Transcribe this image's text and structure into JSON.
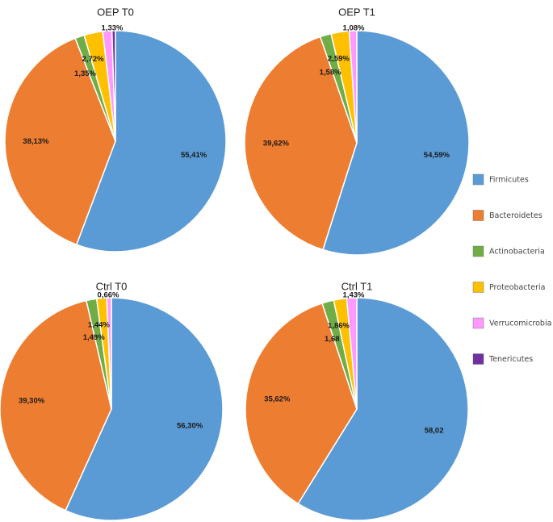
{
  "chart_data": [
    {
      "type": "pie",
      "title": "OEP T0",
      "slices": [
        {
          "category": "Firmicutes",
          "value": 55.41,
          "label": "55,41%"
        },
        {
          "category": "Bacteroidetes",
          "value": 38.13,
          "label": "38,13%"
        },
        {
          "category": "Actinobacteria",
          "value": 1.35,
          "label": "1,35%"
        },
        {
          "category": "Proteobacteria",
          "value": 2.72,
          "label": "2,72%"
        },
        {
          "category": "Verrucomicrobia",
          "value": 1.33,
          "label": "1,33%"
        },
        {
          "category": "Tenericutes",
          "value": 0.5,
          "label": ""
        }
      ]
    },
    {
      "type": "pie",
      "title": "OEP T1",
      "slices": [
        {
          "category": "Firmicutes",
          "value": 54.59,
          "label": "54,59%"
        },
        {
          "category": "Bacteroidetes",
          "value": 39.62,
          "label": "39,62%"
        },
        {
          "category": "Actinobacteria",
          "value": 1.58,
          "label": "1,58%"
        },
        {
          "category": "Proteobacteria",
          "value": 2.59,
          "label": "2,59%"
        },
        {
          "category": "Verrucomicrobia",
          "value": 1.08,
          "label": "1,08%"
        },
        {
          "category": "Tenericutes",
          "value": 0.0,
          "label": ""
        }
      ]
    },
    {
      "type": "pie",
      "title": "Ctrl T0",
      "slices": [
        {
          "category": "Firmicutes",
          "value": 56.3,
          "label": "56,30%"
        },
        {
          "category": "Bacteroidetes",
          "value": 39.3,
          "label": "39,30%"
        },
        {
          "category": "Actinobacteria",
          "value": 1.49,
          "label": "1,49%"
        },
        {
          "category": "Proteobacteria",
          "value": 1.44,
          "label": "1,44%"
        },
        {
          "category": "Verrucomicrobia",
          "value": 0.66,
          "label": "0,66%"
        },
        {
          "category": "Tenericutes",
          "value": 0.0,
          "label": ""
        }
      ]
    },
    {
      "type": "pie",
      "title": "Ctrl T1",
      "slices": [
        {
          "category": "Firmicutes",
          "value": 58.02,
          "label": "58,02"
        },
        {
          "category": "Bacteroidetes",
          "value": 35.62,
          "label": "35,62%"
        },
        {
          "category": "Actinobacteria",
          "value": 1.68,
          "label": "1,68"
        },
        {
          "category": "Proteobacteria",
          "value": 1.86,
          "label": "1,86%"
        },
        {
          "category": "Verrucomicrobia",
          "value": 1.43,
          "label": "1,43%"
        },
        {
          "category": "Tenericutes",
          "value": 0.0,
          "label": ""
        }
      ]
    }
  ],
  "legend": {
    "placement": "right",
    "items": [
      {
        "label": "Firmicutes",
        "color": "#5b9bd5"
      },
      {
        "label": "Bacteroidetes",
        "color": "#ed7d31"
      },
      {
        "label": "Actinobacteria",
        "color": "#70ad47"
      },
      {
        "label": "Proteobacteria",
        "color": "#ffc000"
      },
      {
        "label": "Verrucomicrobia",
        "color": "#ff99ff"
      },
      {
        "label": "Tenericutes",
        "color": "#7030a0"
      }
    ]
  }
}
